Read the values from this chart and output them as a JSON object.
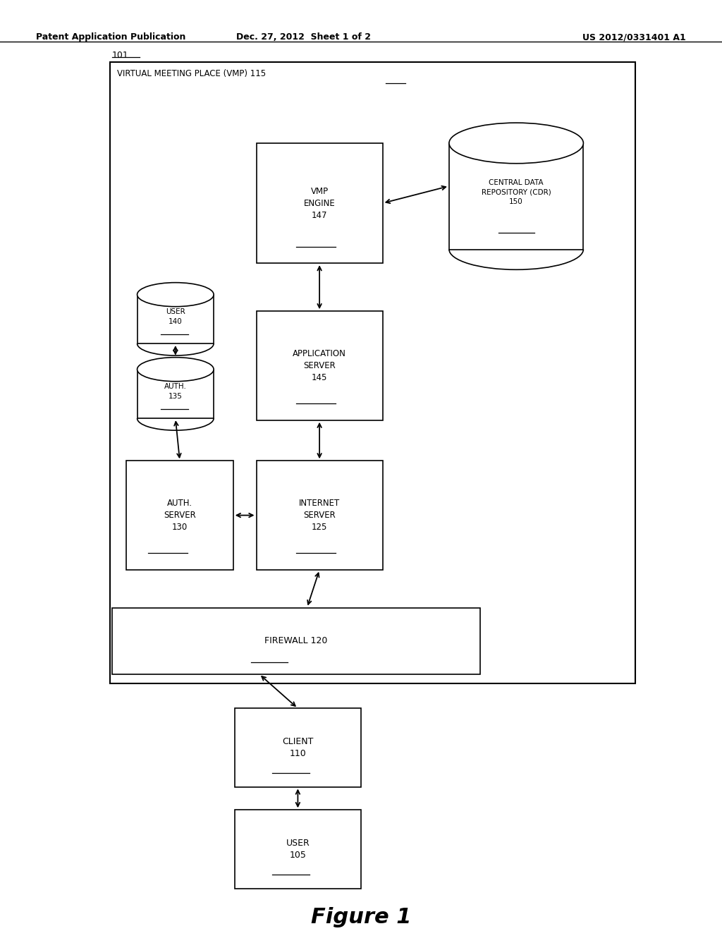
{
  "bg_color": "#ffffff",
  "header_left": "Patent Application Publication",
  "header_mid": "Dec. 27, 2012  Sheet 1 of 2",
  "header_right": "US 2012/0331401 A1",
  "figure_label": "Figure 1"
}
